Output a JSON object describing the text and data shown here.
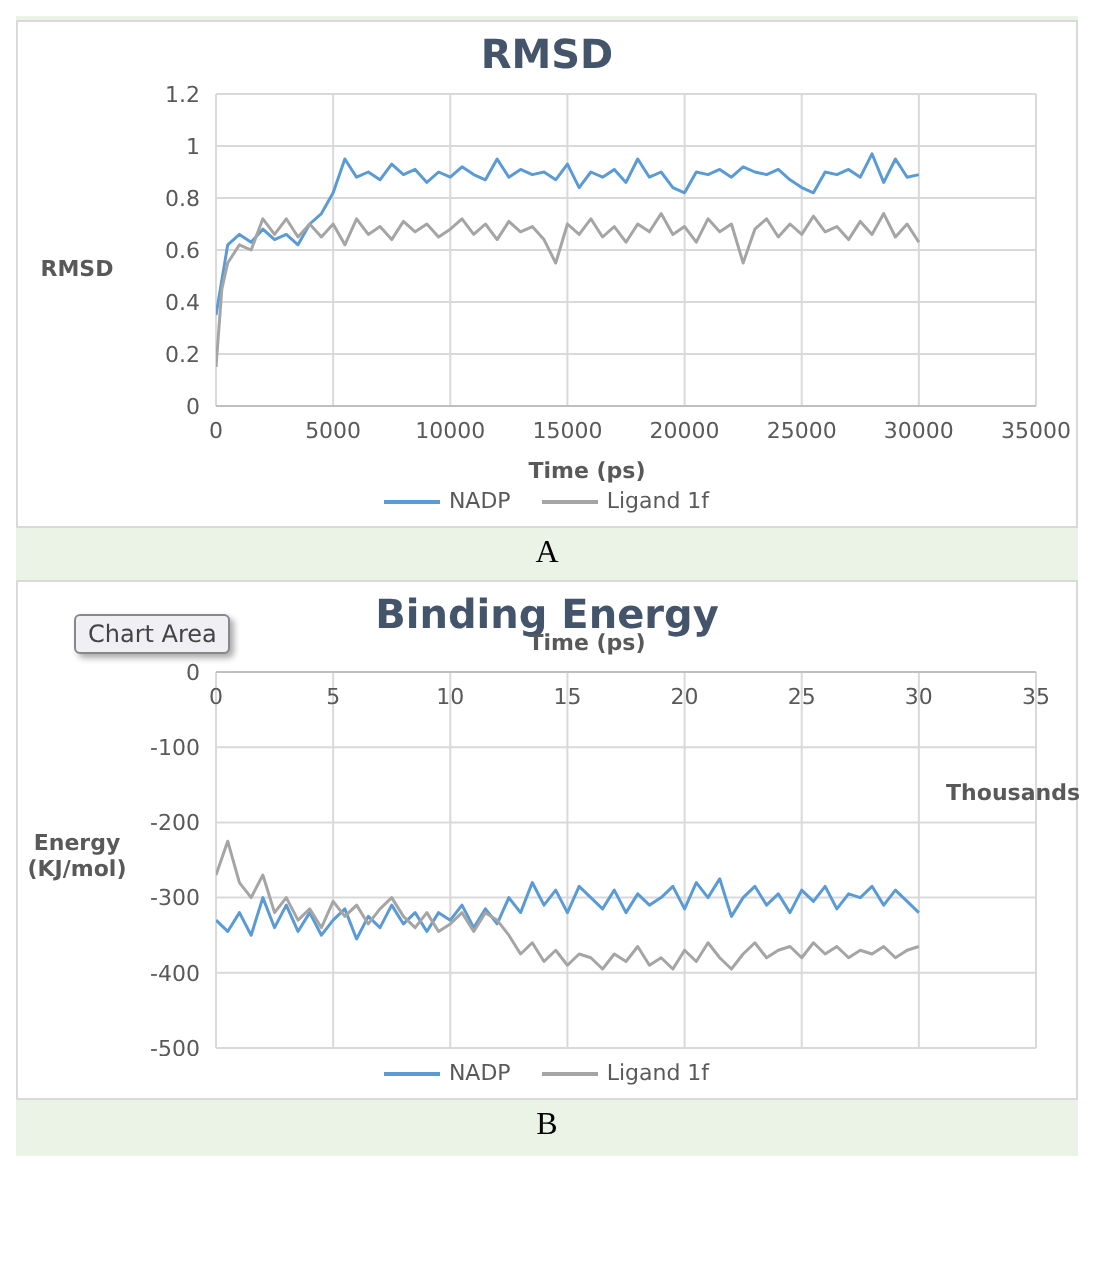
{
  "chart_data": [
    {
      "type": "line",
      "title": "RMSD",
      "xlabel": "Time (ps)",
      "ylabel": "RMSD",
      "xlim": [
        0,
        35000
      ],
      "xticks": [
        0,
        5000,
        10000,
        15000,
        20000,
        25000,
        30000,
        35000
      ],
      "ylim": [
        0,
        1.2
      ],
      "yticks": [
        0,
        0.2,
        0.4,
        0.6,
        0.8,
        1,
        1.2
      ],
      "grid": true,
      "legend": "bottom",
      "marker": "none",
      "line_style": "solid",
      "annotations": [
        "A"
      ],
      "series": [
        {
          "name": "NADP",
          "color": "#5b9bd5",
          "x": [
            0,
            500,
            1000,
            1500,
            2000,
            2500,
            3000,
            3500,
            4000,
            4500,
            5000,
            5500,
            6000,
            6500,
            7000,
            7500,
            8000,
            8500,
            9000,
            9500,
            10000,
            10500,
            11000,
            11500,
            12000,
            12500,
            13000,
            13500,
            14000,
            14500,
            15000,
            15500,
            16000,
            16500,
            17000,
            17500,
            18000,
            18500,
            19000,
            19500,
            20000,
            20500,
            21000,
            21500,
            22000,
            22500,
            23000,
            23500,
            24000,
            24500,
            25000,
            25500,
            26000,
            26500,
            27000,
            27500,
            28000,
            28500,
            29000,
            29500,
            30000
          ],
          "values": [
            0.35,
            0.62,
            0.66,
            0.63,
            0.68,
            0.64,
            0.66,
            0.62,
            0.7,
            0.74,
            0.82,
            0.95,
            0.88,
            0.9,
            0.87,
            0.93,
            0.89,
            0.91,
            0.86,
            0.9,
            0.88,
            0.92,
            0.89,
            0.87,
            0.95,
            0.88,
            0.91,
            0.89,
            0.9,
            0.87,
            0.93,
            0.84,
            0.9,
            0.88,
            0.91,
            0.86,
            0.95,
            0.88,
            0.9,
            0.84,
            0.82,
            0.9,
            0.89,
            0.91,
            0.88,
            0.92,
            0.9,
            0.89,
            0.91,
            0.87,
            0.84,
            0.82,
            0.9,
            0.89,
            0.91,
            0.88,
            0.97,
            0.86,
            0.95,
            0.88,
            0.89
          ]
        },
        {
          "name": "Ligand 1f",
          "color": "#a5a5a5",
          "x": [
            0,
            250,
            500,
            1000,
            1500,
            2000,
            2500,
            3000,
            3500,
            4000,
            4500,
            5000,
            5500,
            6000,
            6500,
            7000,
            7500,
            8000,
            8500,
            9000,
            9500,
            10000,
            10500,
            11000,
            11500,
            12000,
            12500,
            13000,
            13500,
            14000,
            14500,
            15000,
            15500,
            16000,
            16500,
            17000,
            17500,
            18000,
            18500,
            19000,
            19500,
            20000,
            20500,
            21000,
            21500,
            22000,
            22500,
            23000,
            23500,
            24000,
            24500,
            25000,
            25500,
            26000,
            26500,
            27000,
            27500,
            28000,
            28500,
            29000,
            29500,
            30000
          ],
          "values": [
            0.15,
            0.45,
            0.55,
            0.62,
            0.6,
            0.72,
            0.66,
            0.72,
            0.65,
            0.7,
            0.65,
            0.7,
            0.62,
            0.72,
            0.66,
            0.69,
            0.64,
            0.71,
            0.67,
            0.7,
            0.65,
            0.68,
            0.72,
            0.66,
            0.7,
            0.64,
            0.71,
            0.67,
            0.69,
            0.64,
            0.55,
            0.7,
            0.66,
            0.72,
            0.65,
            0.69,
            0.63,
            0.7,
            0.67,
            0.74,
            0.66,
            0.69,
            0.63,
            0.72,
            0.67,
            0.7,
            0.55,
            0.68,
            0.72,
            0.65,
            0.7,
            0.66,
            0.73,
            0.67,
            0.69,
            0.64,
            0.71,
            0.66,
            0.74,
            0.65,
            0.7,
            0.63
          ]
        }
      ]
    },
    {
      "type": "line",
      "title": "Binding Energy",
      "xlabel": "Time (ps)",
      "ylabel": "Energy (KJ/mol)",
      "xlim": [
        0,
        35
      ],
      "xticks": [
        0,
        5,
        10,
        15,
        20,
        25,
        30,
        35
      ],
      "ylim": [
        -500,
        0
      ],
      "yticks": [
        -500,
        -400,
        -300,
        -200,
        -100,
        0
      ],
      "grid": true,
      "legend": "bottom",
      "marker": "none",
      "line_style": "solid",
      "annotations": [
        "Chart Area",
        "Thousands",
        "B"
      ],
      "series": [
        {
          "name": "NADP",
          "color": "#5b9bd5",
          "x": [
            0,
            0.5,
            1,
            1.5,
            2,
            2.5,
            3,
            3.5,
            4,
            4.5,
            5,
            5.5,
            6,
            6.5,
            7,
            7.5,
            8,
            8.5,
            9,
            9.5,
            10,
            10.5,
            11,
            11.5,
            12,
            12.5,
            13,
            13.5,
            14,
            14.5,
            15,
            15.5,
            16,
            16.5,
            17,
            17.5,
            18,
            18.5,
            19,
            19.5,
            20,
            20.5,
            21,
            21.5,
            22,
            22.5,
            23,
            23.5,
            24,
            24.5,
            25,
            25.5,
            26,
            26.5,
            27,
            27.5,
            28,
            28.5,
            29,
            29.5,
            30
          ],
          "values": [
            -330,
            -345,
            -320,
            -350,
            -300,
            -340,
            -310,
            -345,
            -320,
            -350,
            -330,
            -315,
            -355,
            -325,
            -340,
            -310,
            -335,
            -320,
            -345,
            -320,
            -330,
            -310,
            -340,
            -315,
            -335,
            -300,
            -320,
            -280,
            -310,
            -290,
            -320,
            -285,
            -300,
            -315,
            -290,
            -320,
            -295,
            -310,
            -300,
            -285,
            -315,
            -280,
            -300,
            -275,
            -325,
            -300,
            -285,
            -310,
            -295,
            -320,
            -290,
            -305,
            -285,
            -315,
            -295,
            -300,
            -285,
            -310,
            -290,
            -305,
            -320
          ]
        },
        {
          "name": "Ligand 1f",
          "color": "#a5a5a5",
          "x": [
            0,
            0.5,
            1,
            1.5,
            2,
            2.5,
            3,
            3.5,
            4,
            4.5,
            5,
            5.5,
            6,
            6.5,
            7,
            7.5,
            8,
            8.5,
            9,
            9.5,
            10,
            10.5,
            11,
            11.5,
            12,
            12.5,
            13,
            13.5,
            14,
            14.5,
            15,
            15.5,
            16,
            16.5,
            17,
            17.5,
            18,
            18.5,
            19,
            19.5,
            20,
            20.5,
            21,
            21.5,
            22,
            22.5,
            23,
            23.5,
            24,
            24.5,
            25,
            25.5,
            26,
            26.5,
            27,
            27.5,
            28,
            28.5,
            29,
            29.5,
            30
          ],
          "values": [
            -270,
            -225,
            -280,
            -300,
            -270,
            -320,
            -300,
            -330,
            -315,
            -340,
            -305,
            -325,
            -310,
            -335,
            -315,
            -300,
            -325,
            -340,
            -320,
            -345,
            -335,
            -320,
            -345,
            -320,
            -330,
            -350,
            -375,
            -360,
            -385,
            -370,
            -390,
            -375,
            -380,
            -395,
            -375,
            -385,
            -365,
            -390,
            -380,
            -395,
            -370,
            -385,
            -360,
            -380,
            -395,
            -375,
            -360,
            -380,
            -370,
            -365,
            -380,
            -360,
            -375,
            -365,
            -380,
            -370,
            -375,
            -365,
            -380,
            -370,
            -365
          ]
        }
      ]
    }
  ]
}
